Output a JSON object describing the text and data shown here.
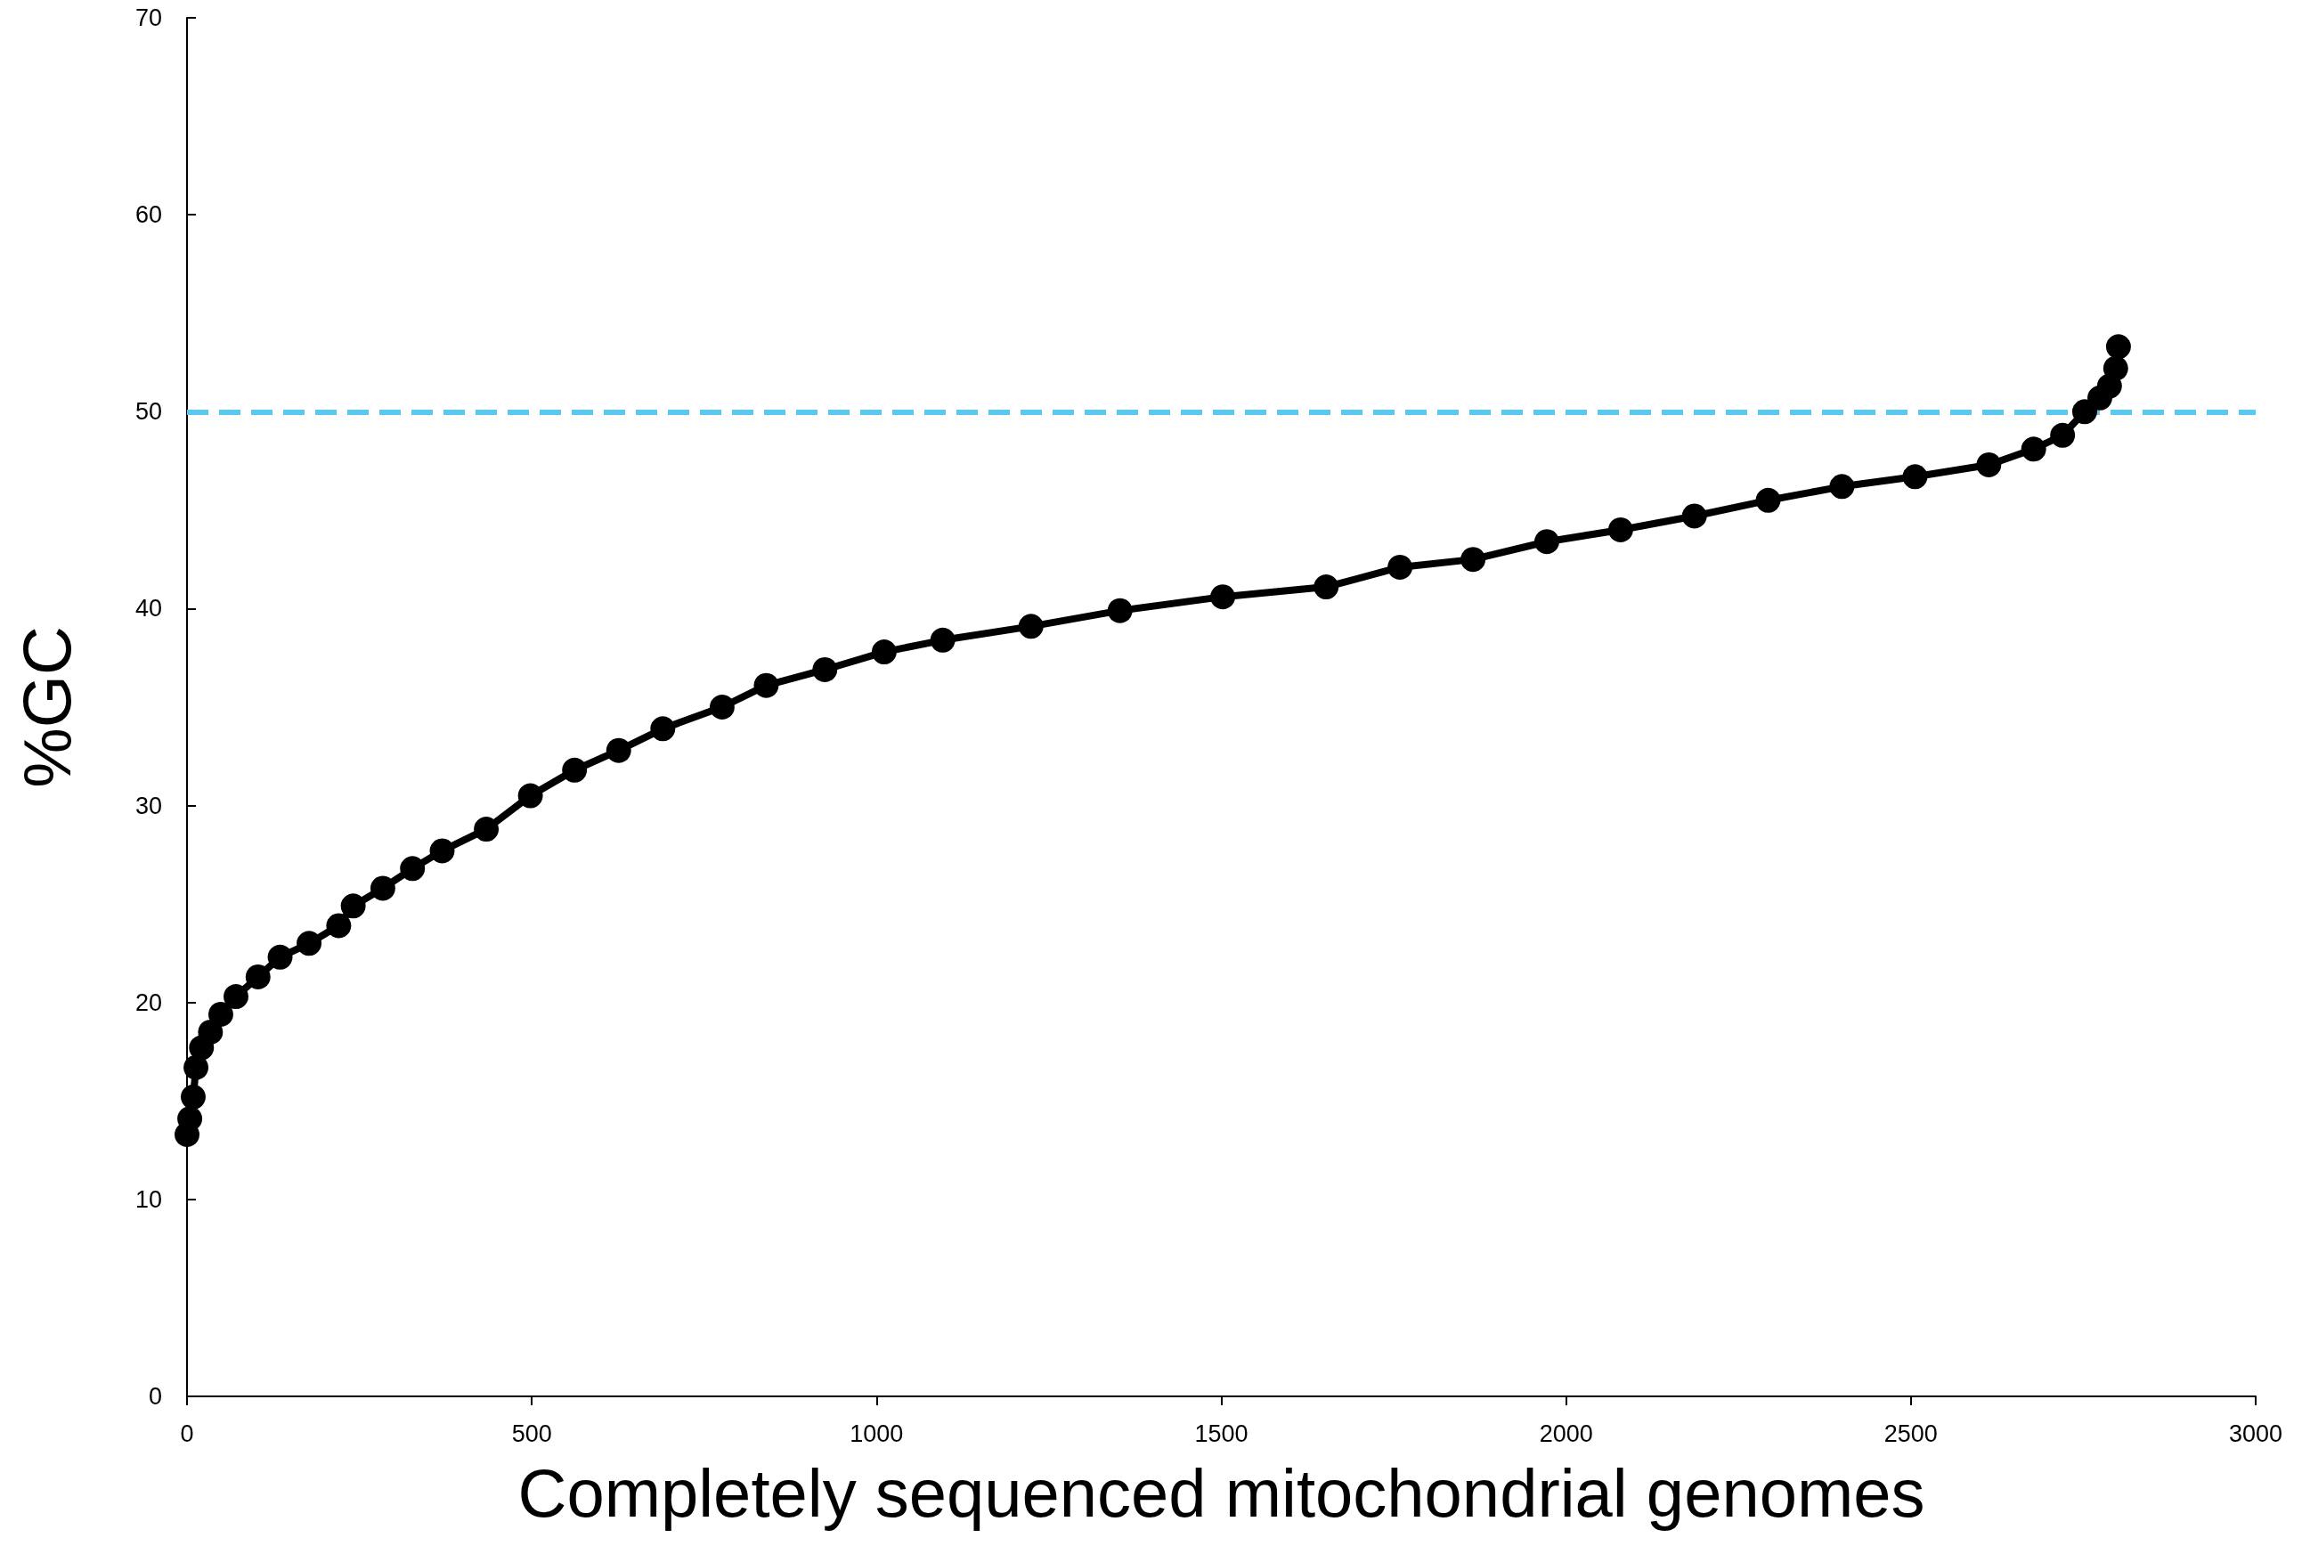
{
  "chart_data": {
    "type": "line",
    "xlabel": "Completely sequenced mitochondrial genomes",
    "ylabel": "%GC",
    "xlim": [
      0,
      3000
    ],
    "xticks": [
      0,
      500,
      1000,
      1500,
      2000,
      2500,
      3000
    ],
    "ylim": [
      0,
      70
    ],
    "yticks": [
      0,
      10,
      20,
      30,
      40,
      50,
      60,
      70
    ],
    "grid": false,
    "marker": "circle",
    "line_style": "solid",
    "ref_lines": [
      {
        "axis": "y",
        "value": 50,
        "color": "#5bc8f0",
        "line_style": "dashed"
      }
    ],
    "series": [
      {
        "color": "#000000",
        "x": [
          0,
          4,
          9,
          13,
          21,
          34,
          49,
          71,
          103,
          135,
          177,
          220,
          241,
          284,
          327,
          370,
          434,
          498,
          562,
          626,
          690,
          776,
          840,
          925,
          1011,
          1096,
          1224,
          1353,
          1502,
          1652,
          1759,
          1865,
          1972,
          2079,
          2186,
          2293,
          2400,
          2506,
          2613,
          2678,
          2720,
          2752,
          2774,
          2788,
          2797,
          2801
        ],
        "values": [
          13.3,
          14.1,
          15.2,
          16.7,
          17.7,
          18.5,
          19.4,
          20.3,
          21.3,
          22.3,
          23.0,
          23.9,
          24.9,
          25.8,
          26.8,
          27.7,
          28.8,
          30.5,
          31.8,
          32.8,
          33.9,
          35.0,
          36.1,
          36.9,
          37.8,
          38.4,
          39.1,
          39.9,
          40.6,
          41.1,
          42.1,
          42.5,
          43.4,
          44.0,
          44.7,
          45.5,
          46.2,
          46.7,
          47.3,
          48.1,
          48.8,
          50.0,
          50.7,
          51.3,
          52.2,
          53.3
        ]
      }
    ]
  }
}
